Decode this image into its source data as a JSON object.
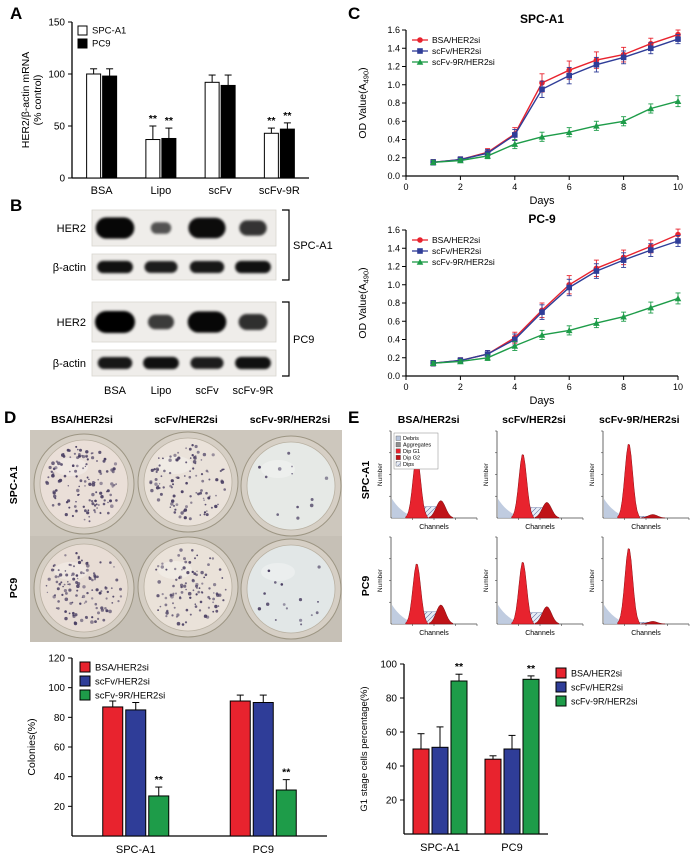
{
  "panel_labels": {
    "a": "A",
    "b": "B",
    "c": "C",
    "d": "D",
    "e": "E"
  },
  "panel_b": {
    "lane_labels": [
      "BSA",
      "Lipo",
      "scFv",
      "scFv-9R"
    ],
    "groups": [
      {
        "cell_line": "SPC-A1",
        "rows": [
          {
            "label": "HER2",
            "intensities": [
              0.95,
              0.3,
              0.9,
              0.55
            ]
          },
          {
            "label": "β-actin",
            "intensities": [
              0.85,
              0.75,
              0.8,
              0.85
            ]
          }
        ]
      },
      {
        "cell_line": "PC9",
        "rows": [
          {
            "label": "HER2",
            "intensities": [
              1.0,
              0.5,
              0.95,
              0.6
            ]
          },
          {
            "label": "β-actin",
            "intensities": [
              0.8,
              0.85,
              0.75,
              0.85
            ]
          }
        ]
      }
    ]
  },
  "panel_d": {
    "col_labels": [
      "BSA/HER2si",
      "scFv/HER2si",
      "scFv-9R/HER2si"
    ],
    "row_labels": [
      "SPC-A1",
      "PC9"
    ],
    "colony_counts": [
      [
        130,
        110,
        12
      ],
      [
        120,
        105,
        16
      ]
    ]
  },
  "panel_e": {
    "col_labels": [
      "BSA/HER2si",
      "scFv/HER2si",
      "scFv-9R/HER2si"
    ],
    "row_labels": [
      "SPC-A1",
      "PC9"
    ],
    "mini_axis": {
      "x": "Channels",
      "y": "Number"
    },
    "flow_legend": [
      {
        "label": "Debris",
        "color": "#b9c6dd"
      },
      {
        "label": "Aggregates",
        "color": "#909090"
      },
      {
        "label": "Dip G1",
        "color": "#e8232e"
      },
      {
        "label": "Dip G2",
        "color": "#c01318"
      },
      {
        "label": "Dips",
        "color": "hatch"
      }
    ],
    "plots": [
      [
        {
          "g1": 0.72,
          "g2": 0.2,
          "s": 0.13
        },
        {
          "g1": 0.74,
          "g2": 0.18,
          "s": 0.12
        },
        {
          "g1": 0.86,
          "g2": 0.04,
          "s": 0.02
        }
      ],
      [
        {
          "g1": 0.7,
          "g2": 0.22,
          "s": 0.14
        },
        {
          "g1": 0.72,
          "g2": 0.2,
          "s": 0.13
        },
        {
          "g1": 0.88,
          "g2": 0.03,
          "s": 0.02
        }
      ]
    ]
  },
  "chart_data": [
    {
      "id": "panel_a_mrna",
      "type": "bar",
      "title": "",
      "ylabel_lines": [
        "HER2/β-actin mRNA",
        "(% control)"
      ],
      "categories": [
        "BSA",
        "Lipo",
        "scFv",
        "scFv-9R"
      ],
      "series": [
        {
          "name": "SPC-A1",
          "color": "#ffffff",
          "values": [
            100,
            37,
            92,
            43
          ],
          "errors": [
            5,
            13,
            7,
            5
          ],
          "sig": [
            false,
            true,
            false,
            true
          ]
        },
        {
          "name": "PC9",
          "color": "#000000",
          "values": [
            98,
            38,
            89,
            47
          ],
          "errors": [
            7,
            10,
            10,
            6
          ],
          "sig": [
            false,
            true,
            false,
            true
          ]
        }
      ],
      "ylim": [
        0,
        150
      ],
      "yticks": [
        0,
        50,
        100,
        150
      ],
      "sig_label": "**",
      "legend_pos": "top-left",
      "grid": false
    },
    {
      "id": "panel_c_spca1",
      "type": "line",
      "title": "SPC-A1",
      "xlabel": "Days",
      "ylabel_parts": {
        "pre": "OD Value(A",
        "sub": "490",
        "post": ")"
      },
      "x": [
        1,
        2,
        3,
        4,
        5,
        6,
        7,
        8,
        9,
        10
      ],
      "xlim": [
        0,
        10
      ],
      "xticks": [
        0,
        2,
        4,
        6,
        8,
        10
      ],
      "ylim": [
        0,
        1.6
      ],
      "yticks": [
        0,
        0.2,
        0.4,
        0.6,
        0.8,
        1.0,
        1.2,
        1.4,
        1.6
      ],
      "series": [
        {
          "name": "BSA/HER2si",
          "color": "#e8232e",
          "marker": "circle",
          "values": [
            0.15,
            0.18,
            0.26,
            0.46,
            1.02,
            1.16,
            1.27,
            1.33,
            1.45,
            1.55
          ],
          "errors": [
            0.03,
            0.03,
            0.04,
            0.07,
            0.1,
            0.1,
            0.09,
            0.08,
            0.06,
            0.05
          ]
        },
        {
          "name": "scFv/HER2si",
          "color": "#2f3d98",
          "marker": "square",
          "values": [
            0.15,
            0.18,
            0.25,
            0.45,
            0.95,
            1.1,
            1.22,
            1.3,
            1.4,
            1.5
          ],
          "errors": [
            0.03,
            0.03,
            0.04,
            0.06,
            0.09,
            0.09,
            0.08,
            0.07,
            0.06,
            0.05
          ]
        },
        {
          "name": "scFv-9R/HER2si",
          "color": "#1e9c49",
          "marker": "triangle",
          "values": [
            0.15,
            0.17,
            0.22,
            0.35,
            0.43,
            0.48,
            0.55,
            0.6,
            0.74,
            0.82
          ],
          "errors": [
            0.02,
            0.02,
            0.03,
            0.05,
            0.05,
            0.05,
            0.05,
            0.05,
            0.05,
            0.06
          ]
        }
      ],
      "legend_pos": "top-left",
      "grid": false
    },
    {
      "id": "panel_c_pc9",
      "type": "line",
      "title": "PC-9",
      "xlabel": "Days",
      "ylabel_parts": {
        "pre": "OD Value(A",
        "sub": "490",
        "post": ")"
      },
      "x": [
        1,
        2,
        3,
        4,
        5,
        6,
        7,
        8,
        9,
        10
      ],
      "xlim": [
        0,
        10
      ],
      "xticks": [
        0,
        2,
        4,
        6,
        8,
        10
      ],
      "ylim": [
        0,
        1.6
      ],
      "yticks": [
        0,
        0.2,
        0.4,
        0.6,
        0.8,
        1.0,
        1.2,
        1.4,
        1.6
      ],
      "series": [
        {
          "name": "BSA/HER2si",
          "color": "#e8232e",
          "marker": "circle",
          "values": [
            0.14,
            0.17,
            0.24,
            0.42,
            0.72,
            1.0,
            1.18,
            1.3,
            1.42,
            1.55
          ],
          "errors": [
            0.03,
            0.03,
            0.04,
            0.06,
            0.08,
            0.1,
            0.09,
            0.08,
            0.07,
            0.06
          ]
        },
        {
          "name": "scFv/HER2si",
          "color": "#2f3d98",
          "marker": "square",
          "values": [
            0.14,
            0.17,
            0.24,
            0.4,
            0.7,
            0.97,
            1.15,
            1.27,
            1.38,
            1.48
          ],
          "errors": [
            0.03,
            0.03,
            0.04,
            0.06,
            0.08,
            0.09,
            0.08,
            0.08,
            0.07,
            0.06
          ]
        },
        {
          "name": "scFv-9R/HER2si",
          "color": "#1e9c49",
          "marker": "triangle",
          "values": [
            0.14,
            0.16,
            0.2,
            0.33,
            0.45,
            0.5,
            0.58,
            0.65,
            0.75,
            0.85
          ],
          "errors": [
            0.02,
            0.02,
            0.03,
            0.05,
            0.05,
            0.05,
            0.05,
            0.05,
            0.06,
            0.06
          ]
        }
      ],
      "legend_pos": "top-left",
      "grid": false
    },
    {
      "id": "panel_d_colonies",
      "type": "bar",
      "title": "",
      "ylabel_lines": [
        "Colonies(%)"
      ],
      "categories": [
        "SPC-A1",
        "PC9"
      ],
      "series": [
        {
          "name": "BSA/HER2si",
          "color": "#e8232e",
          "values": [
            87,
            91
          ],
          "errors": [
            4,
            4
          ],
          "sig": [
            false,
            false
          ]
        },
        {
          "name": "scFv/HER2si",
          "color": "#2f3d98",
          "values": [
            85,
            90
          ],
          "errors": [
            5,
            5
          ],
          "sig": [
            false,
            false
          ]
        },
        {
          "name": "scFv-9R/HER2si",
          "color": "#1e9c49",
          "values": [
            27,
            31
          ],
          "errors": [
            6,
            7
          ],
          "sig": [
            true,
            true
          ]
        }
      ],
      "ylim": [
        0,
        120
      ],
      "yticks": [
        20,
        40,
        60,
        80,
        100,
        120
      ],
      "sig_label": "**",
      "legend_pos": "top-left",
      "grid": false
    },
    {
      "id": "panel_e_g1",
      "type": "bar",
      "title": "",
      "ylabel_lines": [
        "G1 stage cells percentage(%)"
      ],
      "categories": [
        "SPC-A1",
        "PC9"
      ],
      "series": [
        {
          "name": "BSA/HER2si",
          "color": "#e8232e",
          "values": [
            50,
            44
          ],
          "errors": [
            9,
            2
          ],
          "sig": [
            false,
            false
          ]
        },
        {
          "name": "scFv/HER2si",
          "color": "#2f3d98",
          "values": [
            51,
            50
          ],
          "errors": [
            12,
            8
          ],
          "sig": [
            false,
            false
          ]
        },
        {
          "name": "scFv-9R/HER2si",
          "color": "#1e9c49",
          "values": [
            90,
            91
          ],
          "errors": [
            4,
            2
          ],
          "sig": [
            true,
            true
          ]
        }
      ],
      "ylim": [
        0,
        100
      ],
      "yticks": [
        20,
        40,
        60,
        80,
        100
      ],
      "sig_label": "**",
      "legend_pos": "right",
      "grid": false
    }
  ]
}
